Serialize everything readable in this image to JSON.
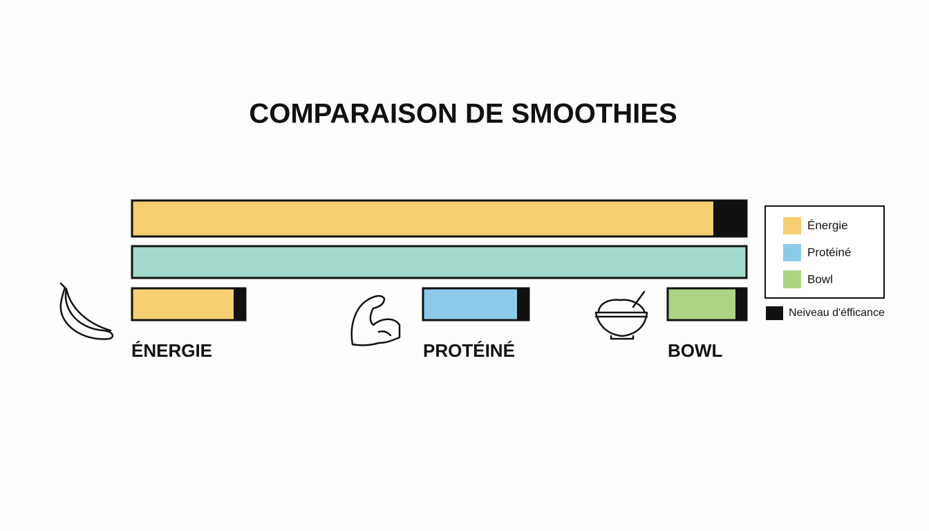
{
  "title": "COMPARAISON DE SMOOTHIES",
  "legend": {
    "items": [
      "Énergie",
      "Protéiné",
      "Bowl"
    ],
    "efficiency": "Neiveau d'éfficance"
  },
  "labels": [
    "ÉNERGIE",
    "PROTÉINÉ",
    "BOWL"
  ]
}
